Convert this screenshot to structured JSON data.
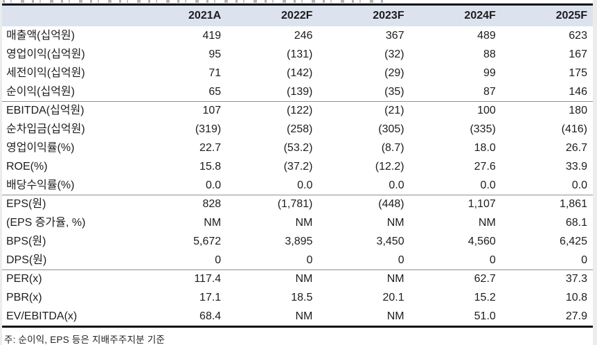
{
  "colors": {
    "header_bg": "#dce3ee",
    "table_border": "#0d0d0d",
    "section_separator": "#8f8f8f",
    "text": "#1c1c1c",
    "page_gutter": "#ececec"
  },
  "chart_data": {
    "type": "table",
    "columns": [
      "2021A",
      "2022F",
      "2023F",
      "2024F",
      "2025F"
    ],
    "rows": [
      {
        "label": "매출액(십억원)",
        "values": [
          "419",
          "246",
          "367",
          "489",
          "623"
        ]
      },
      {
        "label": "영업이익(십억원)",
        "values": [
          "95",
          "(131)",
          "(32)",
          "88",
          "167"
        ]
      },
      {
        "label": "세전이익(십억원)",
        "values": [
          "71",
          "(142)",
          "(29)",
          "99",
          "175"
        ]
      },
      {
        "label": "순이익(십억원)",
        "values": [
          "65",
          "(139)",
          "(35)",
          "87",
          "146"
        ]
      },
      {
        "label": "EBITDA(십억원)",
        "values": [
          "107",
          "(122)",
          "(21)",
          "100",
          "180"
        ]
      },
      {
        "label": "순차입금(십억원)",
        "values": [
          "(319)",
          "(258)",
          "(305)",
          "(335)",
          "(416)"
        ]
      },
      {
        "label": "영업이익률(%)",
        "values": [
          "22.7",
          "(53.2)",
          "(8.7)",
          "18.0",
          "26.7"
        ]
      },
      {
        "label": "ROE(%)",
        "values": [
          "15.8",
          "(37.2)",
          "(12.2)",
          "27.6",
          "33.9"
        ]
      },
      {
        "label": "배당수익률(%)",
        "values": [
          "0.0",
          "0.0",
          "0.0",
          "0.0",
          "0.0"
        ]
      },
      {
        "label": "EPS(원)",
        "values": [
          "828",
          "(1,781)",
          "(448)",
          "1,107",
          "1,861"
        ]
      },
      {
        "label": "(EPS 증가율, %)",
        "values": [
          "NM",
          "NM",
          "NM",
          "NM",
          "68.1"
        ]
      },
      {
        "label": "BPS(원)",
        "values": [
          "5,672",
          "3,895",
          "3,450",
          "4,560",
          "6,425"
        ]
      },
      {
        "label": "DPS(원)",
        "values": [
          "0",
          "0",
          "0",
          "0",
          "0"
        ]
      },
      {
        "label": "PER(x)",
        "values": [
          "117.4",
          "NM",
          "NM",
          "62.7",
          "37.3"
        ]
      },
      {
        "label": "PBR(x)",
        "values": [
          "17.1",
          "18.5",
          "20.1",
          "15.2",
          "10.8"
        ]
      },
      {
        "label": "EV/EBITDA(x)",
        "values": [
          "68.4",
          "NM",
          "NM",
          "51.0",
          "27.9"
        ]
      }
    ],
    "note": "주: 순이익, EPS 등은 지배주주지분 기준",
    "layout": {
      "grid": "off",
      "header_style": "shaded-band",
      "negative_format": "parentheses",
      "section_breaks_after_rows": [
        3,
        8,
        12
      ]
    }
  }
}
